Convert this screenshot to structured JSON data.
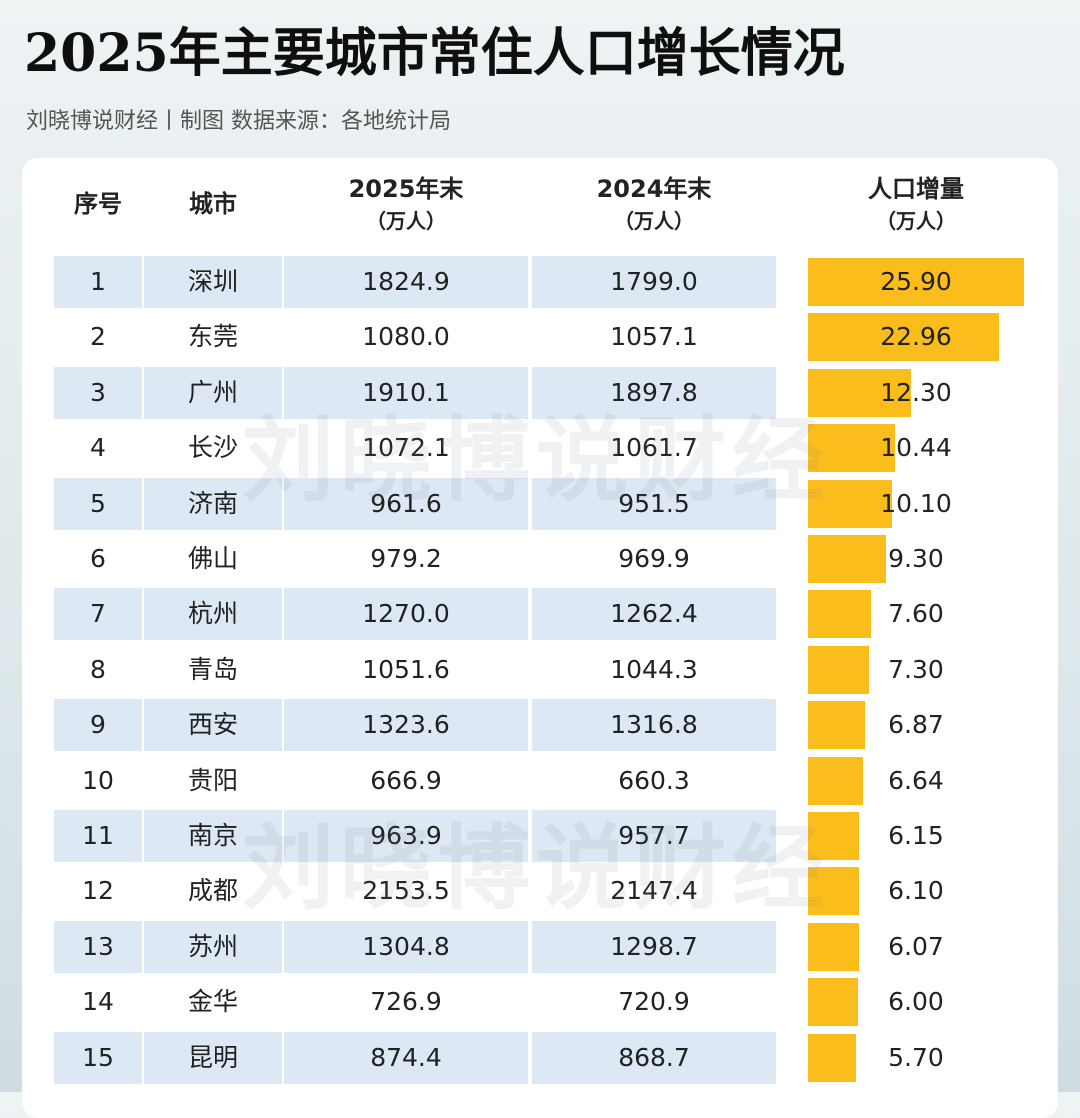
{
  "header": {
    "title": "2025年主要城市常住人口增长情况",
    "subtitle": "刘晓博说财经丨制图   数据来源：各地统计局"
  },
  "watermark": "刘晓博说财经",
  "colors": {
    "bar": "#fbbd1c",
    "row_shade": "#dce8f4"
  },
  "table": {
    "columns": [
      {
        "label": "序号",
        "unit": ""
      },
      {
        "label": "城市",
        "unit": ""
      },
      {
        "label": "2025年末",
        "unit": "（万人）"
      },
      {
        "label": "2024年末",
        "unit": "（万人）"
      },
      {
        "label": "人口增量",
        "unit": "（万人）"
      }
    ],
    "rows": [
      {
        "rank": "1",
        "city": "深圳",
        "y2025": "1824.9",
        "y2024": "1799.0",
        "increase": "25.90"
      },
      {
        "rank": "2",
        "city": "东莞",
        "y2025": "1080.0",
        "y2024": "1057.1",
        "increase": "22.96"
      },
      {
        "rank": "3",
        "city": "广州",
        "y2025": "1910.1",
        "y2024": "1897.8",
        "increase": "12.30"
      },
      {
        "rank": "4",
        "city": "长沙",
        "y2025": "1072.1",
        "y2024": "1061.7",
        "increase": "10.44"
      },
      {
        "rank": "5",
        "city": "济南",
        "y2025": "961.6",
        "y2024": "951.5",
        "increase": "10.10"
      },
      {
        "rank": "6",
        "city": "佛山",
        "y2025": "979.2",
        "y2024": "969.9",
        "increase": "9.30"
      },
      {
        "rank": "7",
        "city": "杭州",
        "y2025": "1270.0",
        "y2024": "1262.4",
        "increase": "7.60"
      },
      {
        "rank": "8",
        "city": "青岛",
        "y2025": "1051.6",
        "y2024": "1044.3",
        "increase": "7.30"
      },
      {
        "rank": "9",
        "city": "西安",
        "y2025": "1323.6",
        "y2024": "1316.8",
        "increase": "6.87"
      },
      {
        "rank": "10",
        "city": "贵阳",
        "y2025": "666.9",
        "y2024": "660.3",
        "increase": "6.64"
      },
      {
        "rank": "11",
        "city": "南京",
        "y2025": "963.9",
        "y2024": "957.7",
        "increase": "6.15"
      },
      {
        "rank": "12",
        "city": "成都",
        "y2025": "2153.5",
        "y2024": "2147.4",
        "increase": "6.10"
      },
      {
        "rank": "13",
        "city": "苏州",
        "y2025": "1304.8",
        "y2024": "1298.7",
        "increase": "6.07"
      },
      {
        "rank": "14",
        "city": "金华",
        "y2025": "726.9",
        "y2024": "720.9",
        "increase": "6.00"
      },
      {
        "rank": "15",
        "city": "昆明",
        "y2025": "874.4",
        "y2024": "868.7",
        "increase": "5.70"
      }
    ]
  },
  "chart_data": {
    "type": "bar",
    "categories": [
      "深圳",
      "东莞",
      "广州",
      "长沙",
      "济南",
      "佛山",
      "杭州",
      "青岛",
      "西安",
      "贵阳",
      "南京",
      "成都",
      "苏州",
      "金华",
      "昆明"
    ],
    "values": [
      25.9,
      22.96,
      12.3,
      10.44,
      10.1,
      9.3,
      7.6,
      7.3,
      6.87,
      6.64,
      6.15,
      6.1,
      6.07,
      6.0,
      5.7
    ],
    "xlim": [
      0,
      25.9
    ]
  }
}
